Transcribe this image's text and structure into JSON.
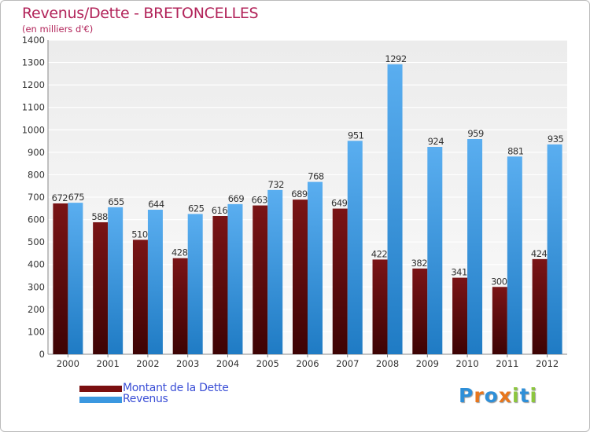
{
  "header": {
    "title": "Revenus/Dette - BRETONCELLES",
    "subtitle": "(en milliers d'€)"
  },
  "legend": {
    "items": [
      {
        "label": "Montant de la Dette",
        "color": "#7a0f10"
      },
      {
        "label": "Revenus",
        "color": "#3b98e0"
      }
    ]
  },
  "logo": {
    "text": "Proxiti",
    "letters": [
      {
        "ch": "P",
        "color": "#2e8fd8"
      },
      {
        "ch": "r",
        "color": "#e8761c"
      },
      {
        "ch": "o",
        "color": "#2e8fd8"
      },
      {
        "ch": "x",
        "color": "#e8761c"
      },
      {
        "ch": "i",
        "color": "#8cc63e"
      },
      {
        "ch": "t",
        "color": "#2e8fd8"
      },
      {
        "ch": "i",
        "color": "#8cc63e"
      }
    ]
  },
  "chart_data": {
    "type": "bar",
    "title": "Revenus/Dette - BRETONCELLES",
    "subtitle": "(en milliers d'€)",
    "categories": [
      "2000",
      "2001",
      "2002",
      "2003",
      "2004",
      "2005",
      "2006",
      "2007",
      "2008",
      "2009",
      "2010",
      "2011",
      "2012"
    ],
    "series": [
      {
        "name": "Montant de la Dette",
        "color": "#7a0f10",
        "values": [
          672,
          588,
          510,
          428,
          616,
          663,
          689,
          649,
          422,
          382,
          341,
          300,
          424
        ]
      },
      {
        "name": "Revenus",
        "color": "#3b98e0",
        "values": [
          675,
          655,
          644,
          625,
          669,
          732,
          768,
          951,
          1292,
          924,
          959,
          881,
          935
        ]
      }
    ],
    "ylim": [
      0,
      1400
    ],
    "yticks": [
      0,
      100,
      200,
      300,
      400,
      500,
      600,
      700,
      800,
      900,
      1000,
      1100,
      1200,
      1300,
      1400
    ],
    "grid": true,
    "legend_position": "bottom-left"
  }
}
